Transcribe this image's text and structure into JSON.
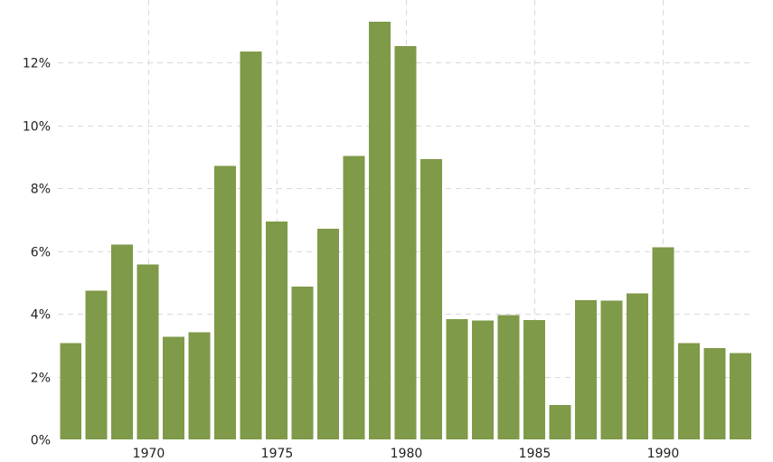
{
  "chart_data": {
    "type": "bar",
    "title": "",
    "xlabel": "",
    "ylabel": "",
    "categories": [
      1967,
      1968,
      1969,
      1970,
      1971,
      1972,
      1973,
      1974,
      1975,
      1976,
      1977,
      1978,
      1979,
      1980,
      1981,
      1982,
      1983,
      1984,
      1985,
      1986,
      1987,
      1988,
      1989,
      1990,
      1991,
      1992,
      1993
    ],
    "values": [
      3.07,
      4.74,
      6.2,
      5.57,
      3.27,
      3.41,
      8.71,
      12.34,
      6.94,
      4.86,
      6.7,
      9.02,
      13.29,
      12.52,
      8.92,
      3.83,
      3.79,
      3.95,
      3.8,
      1.1,
      4.43,
      4.42,
      4.65,
      6.11,
      3.06,
      2.9,
      2.75
    ],
    "ylim": [
      0,
      13.5
    ],
    "yticks": [
      0,
      2,
      4,
      6,
      8,
      10,
      12
    ],
    "ytick_labels": [
      "0%",
      "2%",
      "4%",
      "6%",
      "8%",
      "10%",
      "12%"
    ],
    "xticks": [
      1970,
      1975,
      1980,
      1985,
      1990
    ],
    "xtick_labels": [
      "1970",
      "1975",
      "1980",
      "1985",
      "1990"
    ],
    "grid": true,
    "bar_color": "#7f9a48",
    "grid_color": "#d9d9d9"
  }
}
